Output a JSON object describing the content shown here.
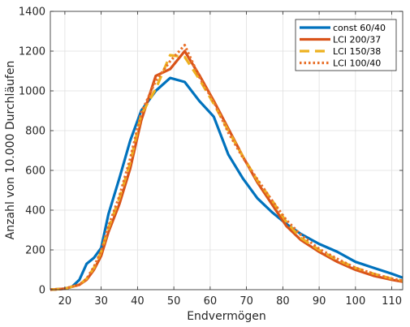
{
  "chart_data": {
    "type": "line",
    "xlabel": "Endvermögen",
    "ylabel": "Anzahl von 10.000 Durchläufen",
    "xlim": [
      16,
      113
    ],
    "ylim": [
      0,
      1400
    ],
    "xticks": [
      20,
      30,
      40,
      50,
      60,
      70,
      80,
      90,
      100,
      110
    ],
    "yticks": [
      0,
      200,
      400,
      600,
      800,
      1000,
      1200,
      1400
    ],
    "grid": true,
    "legend_position": "top-right",
    "series": [
      {
        "name": "const 60/40",
        "color": "#0072BD",
        "style": "solid",
        "x": [
          16,
          20,
          22,
          24,
          26,
          28,
          30,
          32,
          35,
          38,
          41,
          45,
          49,
          53,
          57,
          61,
          65,
          69,
          73,
          77,
          81,
          85,
          90,
          95,
          100,
          105,
          110,
          113
        ],
        "y": [
          0,
          5,
          15,
          50,
          130,
          160,
          210,
          380,
          560,
          750,
          900,
          1000,
          1065,
          1045,
          950,
          870,
          680,
          560,
          460,
          390,
          330,
          280,
          230,
          190,
          140,
          110,
          80,
          60
        ]
      },
      {
        "name": "LCI 200/37",
        "color": "#D95319",
        "style": "solid",
        "x": [
          16,
          20,
          22,
          24,
          26,
          28,
          30,
          32,
          35,
          38,
          41,
          45,
          49,
          53,
          57,
          61,
          65,
          69,
          73,
          77,
          81,
          85,
          90,
          95,
          100,
          105,
          110,
          113
        ],
        "y": [
          0,
          5,
          15,
          25,
          50,
          100,
          170,
          290,
          430,
          610,
          850,
          1075,
          1110,
          1200,
          1080,
          950,
          810,
          670,
          540,
          430,
          320,
          250,
          190,
          140,
          100,
          70,
          50,
          40
        ]
      },
      {
        "name": "LCI 150/38",
        "color": "#EDB120",
        "style": "dashed",
        "x": [
          16,
          20,
          22,
          24,
          26,
          28,
          30,
          32,
          35,
          38,
          41,
          45,
          49,
          53,
          57,
          61,
          65,
          69,
          73,
          77,
          81,
          85,
          90,
          95,
          100,
          105,
          110,
          113
        ],
        "y": [
          0,
          5,
          15,
          25,
          55,
          110,
          190,
          310,
          460,
          640,
          880,
          1010,
          1180,
          1170,
          1060,
          935,
          800,
          670,
          550,
          450,
          340,
          260,
          200,
          150,
          110,
          80,
          55,
          45
        ]
      },
      {
        "name": "LCI 100/40",
        "color": "#E8702A",
        "style": "dotted",
        "x": [
          16,
          20,
          22,
          24,
          26,
          28,
          30,
          32,
          35,
          38,
          41,
          45,
          49,
          53,
          57,
          61,
          65,
          69,
          73,
          77,
          81,
          85,
          90,
          95,
          100,
          105,
          110,
          113
        ],
        "y": [
          0,
          5,
          15,
          25,
          55,
          115,
          195,
          320,
          470,
          660,
          890,
          1050,
          1150,
          1230,
          1070,
          945,
          790,
          665,
          555,
          450,
          350,
          275,
          205,
          155,
          110,
          80,
          55,
          45
        ]
      }
    ]
  }
}
